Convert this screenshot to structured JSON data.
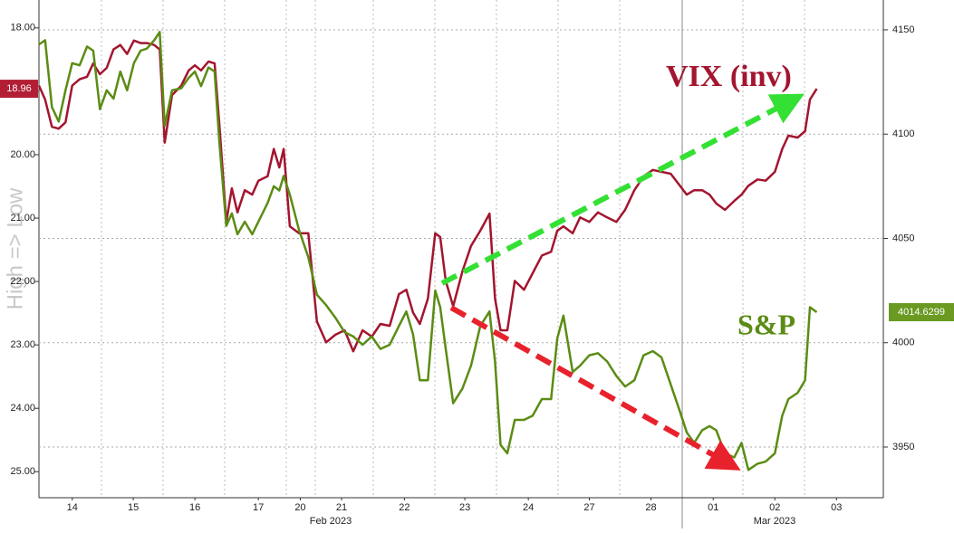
{
  "chart_data": {
    "type": "line",
    "ylabel": "High => Low",
    "x": [
      0,
      0.1,
      0.21,
      0.32,
      0.43,
      0.54,
      0.66,
      0.78,
      0.88,
      0.99,
      1.1,
      1.21,
      1.32,
      1.43,
      1.54,
      1.65,
      1.75,
      1.87,
      1.96,
      2.04,
      2.16,
      2.31,
      2.43,
      2.53,
      2.63,
      2.75,
      2.85,
      2.93,
      3.04,
      3.13,
      3.22,
      3.34,
      3.46,
      3.56,
      3.71,
      3.81,
      3.9,
      3.97,
      4.07,
      4.22,
      4.37,
      4.51,
      4.66,
      4.81,
      4.96,
      5.1,
      5.25,
      5.4,
      5.54,
      5.69,
      5.84,
      5.96,
      6.07,
      6.18,
      6.31,
      6.43,
      6.51,
      6.6,
      6.72,
      6.87,
      7.01,
      7.16,
      7.31,
      7.4,
      7.49,
      7.6,
      7.72,
      7.87,
      8.01,
      8.16,
      8.31,
      8.41,
      8.51,
      8.66,
      8.78,
      8.93,
      9.07,
      9.22,
      9.37,
      9.51,
      9.66,
      9.81,
      9.96,
      10.1,
      10.25,
      10.4,
      10.51,
      10.63,
      10.76,
      10.88,
      10.99,
      11.13,
      11.28,
      11.4,
      11.51,
      11.66,
      11.79,
      11.94,
      12.06,
      12.16,
      12.31,
      12.43,
      12.51,
      12.62
    ],
    "xlim": [
      0,
      13.7
    ],
    "xticks": [
      {
        "value": 0.54,
        "label": "14"
      },
      {
        "value": 1.53,
        "label": "15"
      },
      {
        "value": 2.53,
        "label": "16"
      },
      {
        "value": 3.56,
        "label": "17"
      },
      {
        "value": 4.24,
        "label": "20"
      },
      {
        "value": 4.91,
        "label": "21"
      },
      {
        "value": 5.93,
        "label": "22"
      },
      {
        "value": 6.91,
        "label": "23"
      },
      {
        "value": 7.94,
        "label": "24"
      },
      {
        "value": 8.93,
        "label": "27"
      },
      {
        "value": 9.93,
        "label": "28"
      },
      {
        "value": 10.94,
        "label": "01"
      },
      {
        "value": 11.94,
        "label": "02"
      },
      {
        "value": 12.94,
        "label": "03"
      }
    ],
    "x_group_labels": [
      "Feb 2023",
      "Mar 2023"
    ],
    "ylim": [
      25.41,
      17.56
    ],
    "yticks": [
      {
        "value": 18,
        "label": "18.00"
      },
      {
        "value": 19,
        "label": "19.00"
      },
      {
        "value": 20,
        "label": "20.00"
      },
      {
        "value": 21,
        "label": "21.00"
      },
      {
        "value": 22,
        "label": "22.00"
      },
      {
        "value": 23,
        "label": "23.00"
      },
      {
        "value": 24,
        "label": "24.00"
      },
      {
        "value": 25,
        "label": "25.00"
      }
    ],
    "y2lim": [
      3925.7,
      4164.3
    ],
    "y2ticks": [
      3950,
      4000,
      4050,
      4100,
      4150
    ],
    "grid": true,
    "series": [
      {
        "name": "VIX (inv)",
        "color": "#a3152f",
        "axis": "y",
        "values": [
          18.91,
          19.13,
          19.56,
          19.59,
          19.49,
          18.91,
          18.81,
          18.77,
          18.56,
          18.73,
          18.63,
          18.34,
          18.27,
          18.41,
          18.2,
          18.24,
          18.24,
          18.27,
          18.34,
          19.81,
          19.06,
          18.91,
          18.67,
          18.59,
          18.67,
          18.53,
          18.56,
          19.56,
          21.06,
          20.53,
          20.91,
          20.56,
          20.63,
          20.41,
          20.34,
          19.91,
          20.2,
          19.91,
          21.13,
          21.24,
          21.24,
          22.63,
          22.96,
          22.84,
          22.77,
          23.1,
          22.77,
          22.87,
          22.67,
          22.7,
          22.2,
          22.13,
          22.49,
          22.67,
          22.27,
          21.24,
          21.3,
          21.99,
          22.39,
          21.84,
          21.44,
          21.2,
          20.93,
          22.27,
          22.77,
          22.77,
          21.99,
          22.13,
          21.87,
          21.59,
          21.53,
          21.2,
          21.13,
          21.24,
          20.99,
          21.06,
          20.91,
          20.99,
          21.06,
          20.87,
          20.56,
          20.34,
          20.24,
          20.27,
          20.3,
          20.49,
          20.63,
          20.56,
          20.56,
          20.63,
          20.77,
          20.87,
          20.73,
          20.63,
          20.49,
          20.39,
          20.41,
          20.27,
          19.91,
          19.7,
          19.73,
          19.63,
          19.13,
          18.96
        ]
      },
      {
        "name": "S&P",
        "color": "#5b8c14",
        "axis": "y2",
        "values": [
          4143,
          4145,
          4113,
          4106,
          4121,
          4134,
          4133,
          4142,
          4140,
          4112,
          4121,
          4117,
          4130,
          4121,
          4134,
          4140,
          4141,
          4145,
          4149,
          4104,
          4121,
          4122,
          4127,
          4130,
          4123,
          4132,
          4130,
          4095,
          4056,
          4062,
          4052,
          4058,
          4052,
          4058,
          4067,
          4075,
          4073,
          4080,
          4071,
          4054,
          4041,
          4023,
          4018,
          4012,
          4005,
          4003,
          3999,
          4003,
          3997,
          3999,
          4008,
          4015,
          4004,
          3982,
          3982,
          4025,
          4017,
          3997,
          3971,
          3978,
          3989,
          4008,
          4015,
          3991,
          3951,
          3947,
          3963,
          3963,
          3965,
          3973,
          3973,
          4002,
          4013,
          3986,
          3989,
          3994,
          3995,
          3991,
          3984,
          3979,
          3982,
          3994,
          3996,
          3993,
          3980,
          3967,
          3957,
          3952,
          3958,
          3960,
          3958,
          3947,
          3945,
          3952,
          3939,
          3942,
          3943,
          3947,
          3965,
          3973,
          3976,
          3982,
          4017,
          4014.6299
        ]
      }
    ]
  }
}
